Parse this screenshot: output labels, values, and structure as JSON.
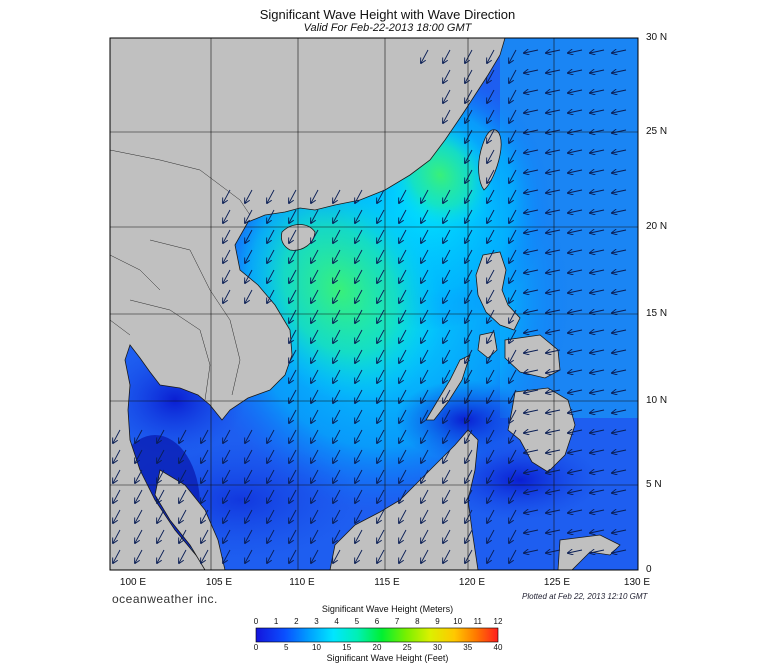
{
  "title": "Significant Wave Height with Wave Direction",
  "subtitle": "Valid For Feb-22-2013 18:00 GMT",
  "longitude_labels": [
    "100 E",
    "105 E",
    "110 E",
    "115 E",
    "120 E",
    "125 E",
    "130 E"
  ],
  "latitude_labels": [
    "0",
    "5 N",
    "10 N",
    "15 N",
    "20 N",
    "25 N",
    "30 N"
  ],
  "brand": "oceanweather inc.",
  "plotted": "Plotted at Feb 22, 2013 12:10 GMT",
  "colorbar": {
    "title_meters": "Significant Wave Height (Meters)",
    "title_feet": "Significant Wave Height (Feet)",
    "meters_ticks": [
      "0",
      "1",
      "2",
      "3",
      "4",
      "5",
      "6",
      "7",
      "8",
      "9",
      "10",
      "11",
      "12"
    ],
    "feet_ticks": [
      "0",
      "5",
      "10",
      "15",
      "20",
      "25",
      "30",
      "35",
      "40"
    ]
  },
  "colors": {
    "land": "#c0c0c0",
    "low_wave": "#1432dc",
    "mid_wave": "#00c8ff",
    "high_wave": "#2dec78"
  },
  "wave_direction": "from northeast"
}
